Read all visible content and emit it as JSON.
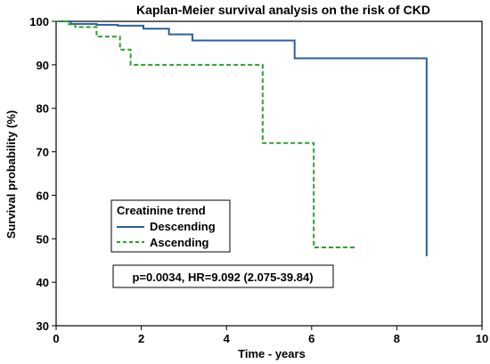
{
  "chart_data": {
    "type": "line",
    "step": true,
    "title": "Kaplan-Meier survival analysis on the risk of CKD",
    "xlabel": "Time - years",
    "ylabel": "Survival probability (%)",
    "xlim": [
      0,
      10
    ],
    "ylim": [
      30,
      100
    ],
    "x_ticks": [
      0,
      2,
      4,
      6,
      8,
      10
    ],
    "y_ticks": [
      30,
      40,
      50,
      60,
      70,
      80,
      90,
      100
    ],
    "grid": false,
    "legend": {
      "title": "Creatinine trend",
      "placement": "lower-left"
    },
    "series": [
      {
        "name": "Descending",
        "color": "#2b5f9e",
        "style": "solid",
        "x": [
          0,
          0.35,
          0.95,
          1.45,
          2.05,
          2.65,
          3.2,
          5.6,
          8.7,
          8.7
        ],
        "y": [
          100,
          99.4,
          99.2,
          99.0,
          98.3,
          97.0,
          95.6,
          91.5,
          91.5,
          46
        ]
      },
      {
        "name": "Ascending",
        "color": "#2ca02c",
        "style": "dashed",
        "x": [
          0,
          0.3,
          0.45,
          0.95,
          1.5,
          1.75,
          4.85,
          6.05,
          7.05
        ],
        "y": [
          100,
          99.3,
          98.7,
          96.5,
          93.5,
          90.0,
          72.0,
          48.0,
          48.0
        ]
      }
    ],
    "annotation": "p=0.0034, HR=9.092 (2.075-39.84)"
  }
}
